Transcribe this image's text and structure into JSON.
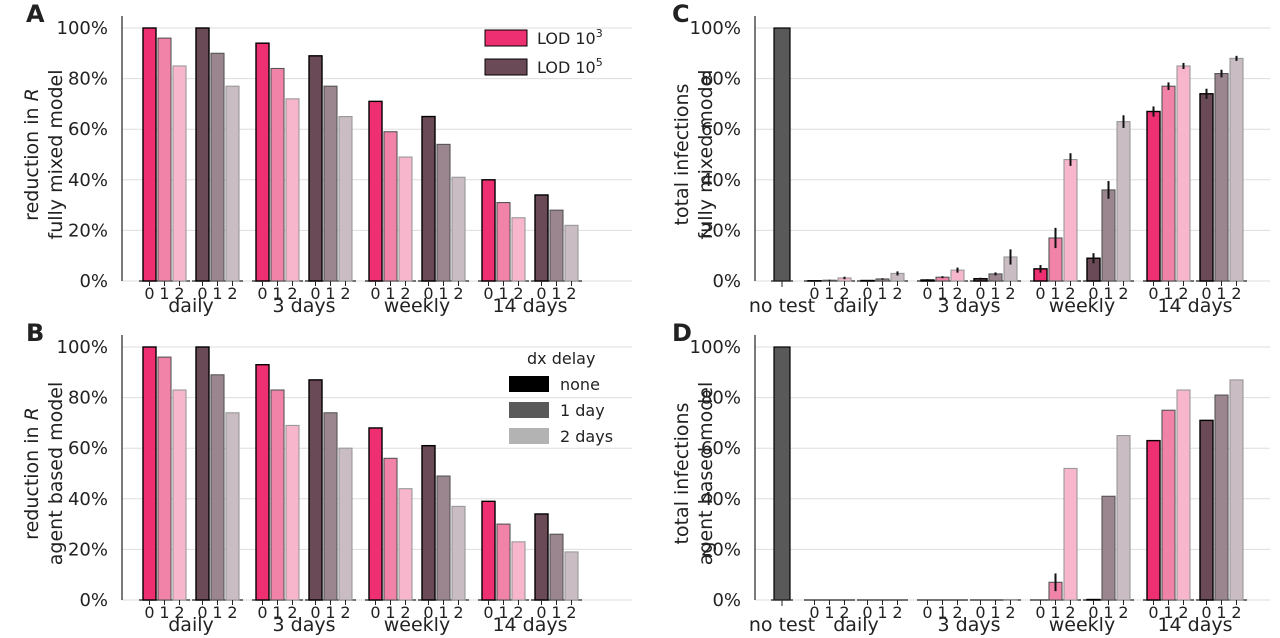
{
  "colors": {
    "lod1e3": [
      "#ee2f72",
      "#f283a8",
      "#f7b6cb"
    ],
    "lod1e5": [
      "#6b4a57",
      "#9b8690",
      "#c9bcc2"
    ],
    "notest": "#595959",
    "dx": [
      "#000000",
      "#5a5a5a",
      "#b3b3b3"
    ]
  },
  "legend_lod": {
    "label_3": "LOD 10",
    "exp_3": "3",
    "label_5": "LOD 10",
    "exp_5": "5"
  },
  "legend_dx": {
    "title": "dx delay",
    "items": [
      "none",
      "1 day",
      "2 days"
    ]
  },
  "chart_data": [
    {
      "panel": "A",
      "type": "bar",
      "ylabel": [
        "reduction in R",
        "fully mixed model"
      ],
      "ylabel_italic": "R",
      "ylim": [
        0,
        100
      ],
      "yticks": [
        "0%",
        "20%",
        "40%",
        "60%",
        "80%",
        "100%"
      ],
      "groups": [
        "daily",
        "3 days",
        "weekly",
        "14 days"
      ],
      "delays": [
        "0",
        "1",
        "2"
      ],
      "series": [
        {
          "name": "LOD 10^3",
          "values": [
            [
              100,
              96,
              85
            ],
            [
              94,
              84,
              72
            ],
            [
              71,
              59,
              49
            ],
            [
              40,
              31,
              25
            ]
          ]
        },
        {
          "name": "LOD 10^5",
          "values": [
            [
              100,
              90,
              77
            ],
            [
              89,
              77,
              65
            ],
            [
              65,
              54,
              41
            ],
            [
              34,
              28,
              22
            ]
          ]
        }
      ]
    },
    {
      "panel": "B",
      "type": "bar",
      "ylabel": [
        "reduction in R",
        "agent based model"
      ],
      "ylabel_italic": "R",
      "ylim": [
        0,
        100
      ],
      "yticks": [
        "0%",
        "20%",
        "40%",
        "60%",
        "80%",
        "100%"
      ],
      "groups": [
        "daily",
        "3 days",
        "weekly",
        "14 days"
      ],
      "delays": [
        "0",
        "1",
        "2"
      ],
      "series": [
        {
          "name": "LOD 10^3",
          "values": [
            [
              100,
              96,
              83
            ],
            [
              93,
              83,
              69
            ],
            [
              68,
              56,
              44
            ],
            [
              39,
              30,
              23
            ]
          ]
        },
        {
          "name": "LOD 10^5",
          "values": [
            [
              100,
              89,
              74
            ],
            [
              87,
              74,
              60
            ],
            [
              61,
              49,
              37
            ],
            [
              34,
              26,
              19
            ]
          ]
        }
      ]
    },
    {
      "panel": "C",
      "type": "bar",
      "ylabel": [
        "total infections",
        "fully mixed model"
      ],
      "ylim": [
        0,
        100
      ],
      "yticks": [
        "0%",
        "20%",
        "40%",
        "60%",
        "80%",
        "100%"
      ],
      "notest_label": "no test",
      "notest_value": 100,
      "groups": [
        "daily",
        "3 days",
        "weekly",
        "14 days"
      ],
      "delays": [
        "0",
        "1",
        "2"
      ],
      "series": [
        {
          "name": "LOD 10^3",
          "values": [
            [
              0.1,
              0.3,
              1.2
            ],
            [
              0.4,
              1.5,
              4.3
            ],
            [
              4.8,
              17,
              48
            ],
            [
              67,
              77,
              85
            ]
          ],
          "errors": [
            [
              0.2,
              0.2,
              0.5
            ],
            [
              0.3,
              0.4,
              1.0
            ],
            [
              1.5,
              4.0,
              2.5
            ],
            [
              2.0,
              1.5,
              1.2
            ]
          ]
        },
        {
          "name": "LOD 10^5",
          "values": [
            [
              0.2,
              0.8,
              3.0
            ],
            [
              0.9,
              2.8,
              9.5
            ],
            [
              9,
              36,
              63
            ],
            [
              74,
              82,
              88
            ]
          ],
          "errors": [
            [
              0.2,
              0.3,
              0.8
            ],
            [
              0.4,
              0.6,
              3.0
            ],
            [
              2.0,
              3.5,
              2.5
            ],
            [
              2.0,
              1.5,
              1.0
            ]
          ]
        }
      ]
    },
    {
      "panel": "D",
      "type": "bar",
      "ylabel": [
        "total infections",
        "agent based model"
      ],
      "ylim": [
        0,
        100
      ],
      "yticks": [
        "0%",
        "20%",
        "40%",
        "60%",
        "80%",
        "100%"
      ],
      "notest_label": "no test",
      "notest_value": 100,
      "groups": [
        "daily",
        "3 days",
        "weekly",
        "14 days"
      ],
      "delays": [
        "0",
        "1",
        "2"
      ],
      "series": [
        {
          "name": "LOD 10^3",
          "values": [
            [
              0,
              0,
              0
            ],
            [
              0,
              0,
              0
            ],
            [
              0,
              7,
              52
            ],
            [
              63,
              75,
              83
            ]
          ],
          "errors": [
            [
              0,
              0,
              0
            ],
            [
              0,
              0,
              0
            ],
            [
              0,
              3.5,
              0
            ],
            [
              0,
              0,
              0
            ]
          ]
        },
        {
          "name": "LOD 10^5",
          "values": [
            [
              0,
              0,
              0
            ],
            [
              0,
              0,
              0.2
            ],
            [
              0.2,
              41,
              65
            ],
            [
              71,
              81,
              87
            ]
          ],
          "errors": [
            [
              0,
              0,
              0
            ],
            [
              0,
              0,
              0
            ],
            [
              0,
              0,
              0
            ],
            [
              0,
              0,
              0
            ]
          ]
        }
      ]
    }
  ]
}
